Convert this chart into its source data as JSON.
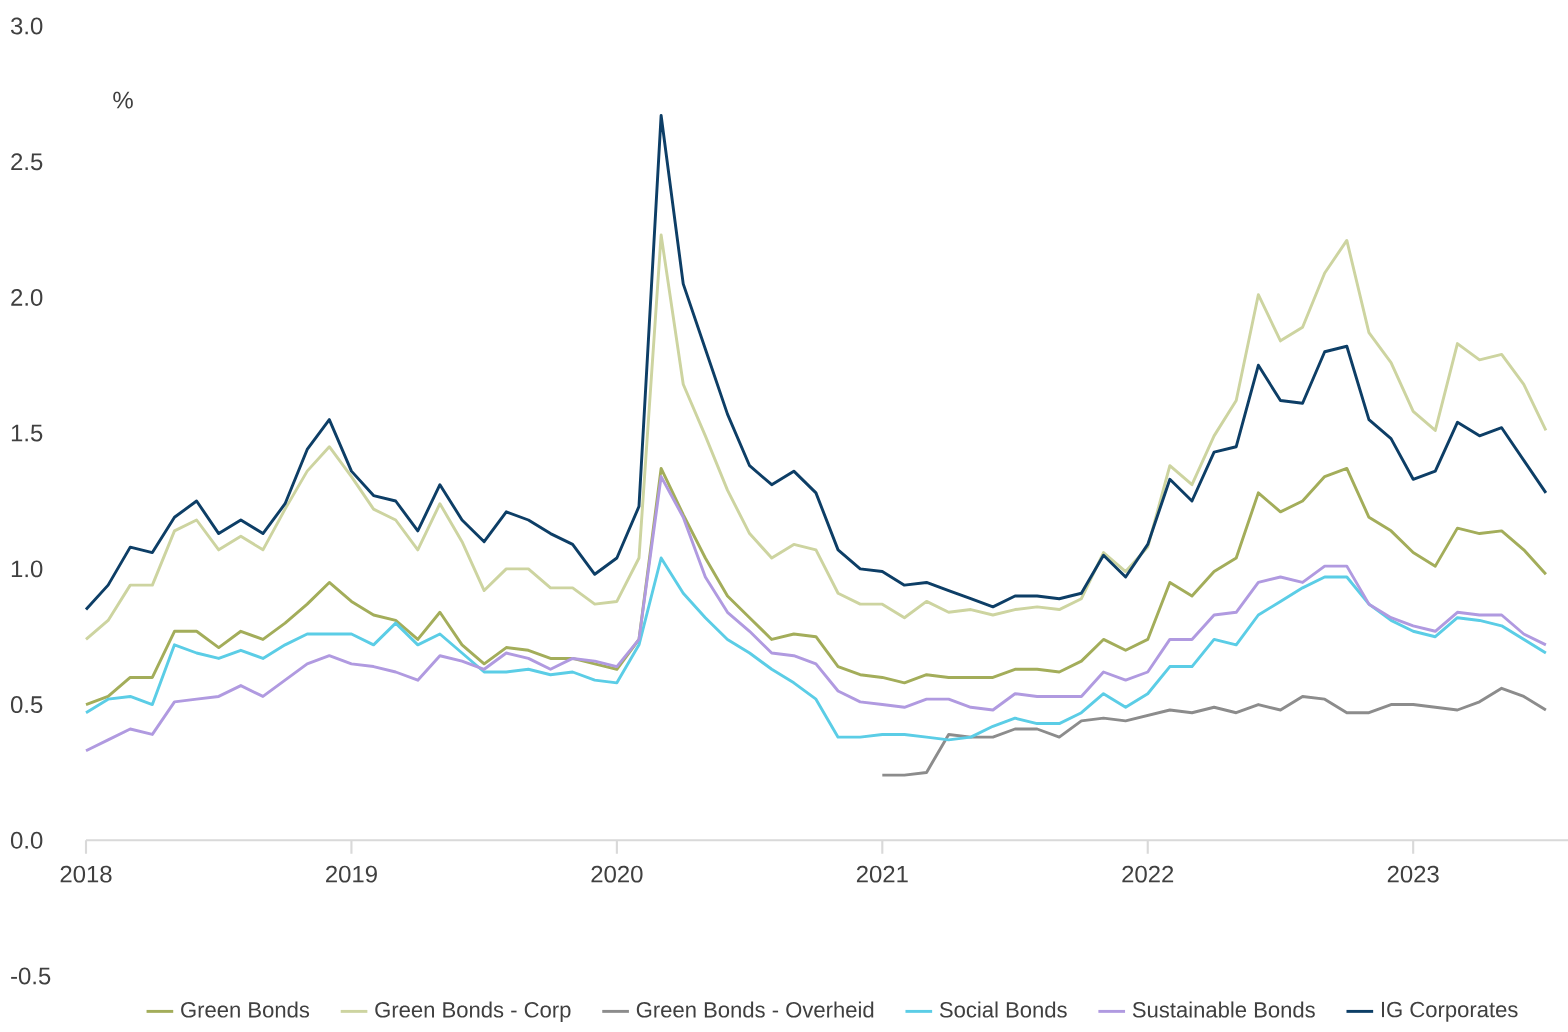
{
  "chart_data": {
    "type": "line",
    "ylabel": "%",
    "legend": "bottom",
    "line_style": "solid",
    "x": [
      "2018-01",
      "2018-02",
      "2018-03",
      "2018-04",
      "2018-05",
      "2018-06",
      "2018-07",
      "2018-08",
      "2018-09",
      "2018-10",
      "2018-11",
      "2018-12",
      "2019-01",
      "2019-02",
      "2019-03",
      "2019-04",
      "2019-05",
      "2019-06",
      "2019-07",
      "2019-08",
      "2019-09",
      "2019-10",
      "2019-11",
      "2019-12",
      "2020-01",
      "2020-02",
      "2020-03",
      "2020-04",
      "2020-05",
      "2020-06",
      "2020-07",
      "2020-08",
      "2020-09",
      "2020-10",
      "2020-11",
      "2020-12",
      "2021-01",
      "2021-02",
      "2021-03",
      "2021-04",
      "2021-05",
      "2021-06",
      "2021-07",
      "2021-08",
      "2021-09",
      "2021-10",
      "2021-11",
      "2021-12",
      "2022-01",
      "2022-02",
      "2022-03",
      "2022-04",
      "2022-05",
      "2022-06",
      "2022-07",
      "2022-08",
      "2022-09",
      "2022-10",
      "2022-11",
      "2022-12",
      "2023-01",
      "2023-02",
      "2023-03",
      "2023-04",
      "2023-05",
      "2023-06",
      "2023-07"
    ],
    "xlim": [
      "2018-01",
      "2023-08"
    ],
    "xticks": [
      "2018",
      "2019",
      "2020",
      "2021",
      "2022",
      "2023"
    ],
    "ylim": [
      -0.5,
      3.0
    ],
    "yticks": [
      {
        "value": -0.5,
        "label": "-0.5"
      },
      {
        "value": 0,
        "label": "0.0"
      },
      {
        "value": 0.5,
        "label": "0.5"
      },
      {
        "value": 1.0,
        "label": "1.0"
      },
      {
        "value": 1.5,
        "label": "1.5"
      },
      {
        "value": 2.0,
        "label": "2.0"
      },
      {
        "value": 2.5,
        "label": "2.5"
      },
      {
        "value": 3.0,
        "label": "3.0"
      }
    ],
    "series": [
      {
        "name": "Green Bonds",
        "color": "#a3ad5a",
        "values": [
          0.5,
          0.53,
          0.6,
          0.6,
          0.77,
          0.77,
          0.71,
          0.77,
          0.74,
          0.8,
          0.87,
          0.95,
          0.88,
          0.83,
          0.81,
          0.74,
          0.84,
          0.72,
          0.65,
          0.71,
          0.7,
          0.67,
          0.67,
          0.65,
          0.63,
          0.74,
          1.37,
          1.2,
          1.04,
          0.9,
          0.82,
          0.74,
          0.76,
          0.75,
          0.64,
          0.61,
          0.6,
          0.58,
          0.61,
          0.6,
          0.6,
          0.6,
          0.63,
          0.63,
          0.62,
          0.66,
          0.74,
          0.7,
          0.74,
          0.95,
          0.9,
          0.99,
          1.04,
          1.28,
          1.21,
          1.25,
          1.34,
          1.37,
          1.19,
          1.14,
          1.06,
          1.01,
          1.15,
          1.13,
          1.14,
          1.07,
          0.98
        ]
      },
      {
        "name": "Green Bonds - Corp",
        "color": "#cdd4a0",
        "values": [
          0.74,
          0.81,
          0.94,
          0.94,
          1.14,
          1.18,
          1.07,
          1.12,
          1.07,
          1.22,
          1.36,
          1.45,
          1.34,
          1.22,
          1.18,
          1.07,
          1.24,
          1.1,
          0.92,
          1.0,
          1.0,
          0.93,
          0.93,
          0.87,
          0.88,
          1.04,
          2.23,
          1.68,
          1.49,
          1.29,
          1.13,
          1.04,
          1.09,
          1.07,
          0.91,
          0.87,
          0.87,
          0.82,
          0.88,
          0.84,
          0.85,
          0.83,
          0.85,
          0.86,
          0.85,
          0.89,
          1.06,
          0.99,
          1.08,
          1.38,
          1.31,
          1.49,
          1.62,
          2.01,
          1.84,
          1.89,
          2.09,
          2.21,
          1.87,
          1.76,
          1.58,
          1.51,
          1.83,
          1.77,
          1.79,
          1.68,
          1.51
        ]
      },
      {
        "name": "Green Bonds - Overheid",
        "color": "#8c8c8c",
        "values": [
          null,
          null,
          null,
          null,
          null,
          null,
          null,
          null,
          null,
          null,
          null,
          null,
          null,
          null,
          null,
          null,
          null,
          null,
          null,
          null,
          null,
          null,
          null,
          null,
          null,
          null,
          null,
          null,
          null,
          null,
          null,
          null,
          null,
          null,
          null,
          null,
          0.24,
          0.24,
          0.25,
          0.39,
          0.38,
          0.38,
          0.41,
          0.41,
          0.38,
          0.44,
          0.45,
          0.44,
          0.46,
          0.48,
          0.47,
          0.49,
          0.47,
          0.5,
          0.48,
          0.53,
          0.52,
          0.47,
          0.47,
          0.5,
          0.5,
          0.49,
          0.48,
          0.51,
          0.56,
          0.53,
          0.48
        ]
      },
      {
        "name": "Social Bonds",
        "color": "#5bcde6",
        "values": [
          0.47,
          0.52,
          0.53,
          0.5,
          0.72,
          0.69,
          0.67,
          0.7,
          0.67,
          0.72,
          0.76,
          0.76,
          0.76,
          0.72,
          0.8,
          0.72,
          0.76,
          0.69,
          0.62,
          0.62,
          0.63,
          0.61,
          0.62,
          0.59,
          0.58,
          0.72,
          1.04,
          0.91,
          0.82,
          0.74,
          0.69,
          0.63,
          0.58,
          0.52,
          0.38,
          0.38,
          0.39,
          0.39,
          0.38,
          0.37,
          0.38,
          0.42,
          0.45,
          0.43,
          0.43,
          0.47,
          0.54,
          0.49,
          0.54,
          0.64,
          0.64,
          0.74,
          0.72,
          0.83,
          0.88,
          0.93,
          0.97,
          0.97,
          0.87,
          0.81,
          0.77,
          0.75,
          0.82,
          0.81,
          0.79,
          0.74,
          0.69
        ]
      },
      {
        "name": "Sustainable Bonds",
        "color": "#b09ae0",
        "values": [
          0.33,
          0.37,
          0.41,
          0.39,
          0.51,
          0.52,
          0.53,
          0.57,
          0.53,
          0.59,
          0.65,
          0.68,
          0.65,
          0.64,
          0.62,
          0.59,
          0.68,
          0.66,
          0.63,
          0.69,
          0.67,
          0.63,
          0.67,
          0.66,
          0.64,
          0.74,
          1.34,
          1.19,
          0.97,
          0.84,
          0.77,
          0.69,
          0.68,
          0.65,
          0.55,
          0.51,
          0.5,
          0.49,
          0.52,
          0.52,
          0.49,
          0.48,
          0.54,
          0.53,
          0.53,
          0.53,
          0.62,
          0.59,
          0.62,
          0.74,
          0.74,
          0.83,
          0.84,
          0.95,
          0.97,
          0.95,
          1.01,
          1.01,
          0.87,
          0.82,
          0.79,
          0.77,
          0.84,
          0.83,
          0.83,
          0.76,
          0.72
        ]
      },
      {
        "name": "IG Corporates",
        "color": "#0d3e66",
        "values": [
          0.85,
          0.94,
          1.08,
          1.06,
          1.19,
          1.25,
          1.13,
          1.18,
          1.13,
          1.24,
          1.44,
          1.55,
          1.36,
          1.27,
          1.25,
          1.14,
          1.31,
          1.18,
          1.1,
          1.21,
          1.18,
          1.13,
          1.09,
          0.98,
          1.04,
          1.23,
          2.67,
          2.05,
          1.81,
          1.57,
          1.38,
          1.31,
          1.36,
          1.28,
          1.07,
          1.0,
          0.99,
          0.94,
          0.95,
          0.92,
          0.89,
          0.86,
          0.9,
          0.9,
          0.89,
          0.91,
          1.05,
          0.97,
          1.09,
          1.33,
          1.25,
          1.43,
          1.45,
          1.75,
          1.62,
          1.61,
          1.8,
          1.82,
          1.55,
          1.48,
          1.33,
          1.36,
          1.54,
          1.49,
          1.52,
          1.4,
          1.28
        ]
      }
    ]
  }
}
